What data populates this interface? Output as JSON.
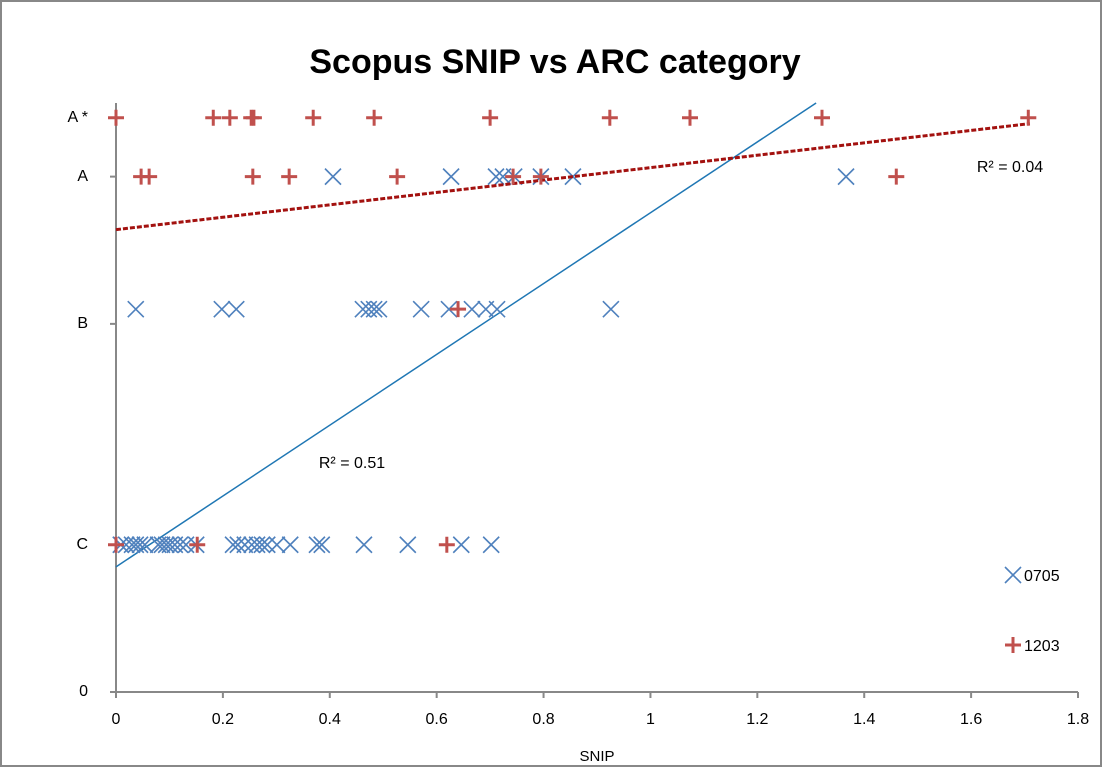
{
  "chart_data": {
    "type": "scatter",
    "title": "Scopus SNIP vs ARC category",
    "x_label": "SNIP",
    "xlim": [
      0,
      1.8
    ],
    "xticks": [
      0,
      0.2,
      0.4,
      0.6,
      0.8,
      1,
      1.2,
      1.4,
      1.6,
      1.8
    ],
    "ylim": [
      0,
      4
    ],
    "yticks": [
      0,
      {
        "value": 1,
        "label": "C"
      },
      {
        "value": 2.5,
        "label": "B"
      },
      {
        "value": 3.5,
        "label": "A"
      },
      {
        "value": 3.9,
        "label": "A *"
      }
    ],
    "grid": false,
    "legend": "right",
    "series": [
      {
        "name": "0705",
        "color": "#4f81bd",
        "marker": "x",
        "x": [
          0.406,
          0.627,
          0.711,
          0.724,
          0.745,
          0.795,
          0.855,
          1.366,
          0.037,
          0.198,
          0.225,
          0.462,
          0.473,
          0.483,
          0.492,
          0.571,
          0.623,
          0.666,
          0.692,
          0.713,
          0.926,
          0.009,
          0.019,
          0.03,
          0.037,
          0.045,
          0.054,
          0.079,
          0.086,
          0.094,
          0.101,
          0.11,
          0.12,
          0.131,
          0.15,
          0.219,
          0.228,
          0.241,
          0.254,
          0.264,
          0.273,
          0.283,
          0.301,
          0.326,
          0.376,
          0.385,
          0.464,
          0.546,
          0.646,
          0.702
        ],
        "values": [
          3.5,
          3.5,
          3.5,
          3.5,
          3.5,
          3.5,
          3.5,
          3.5,
          2.6,
          2.6,
          2.6,
          2.6,
          2.6,
          2.6,
          2.6,
          2.6,
          2.6,
          2.6,
          2.6,
          2.6,
          2.6,
          1,
          1,
          1,
          1,
          1,
          1,
          1,
          1,
          1,
          1,
          1,
          1,
          1,
          1,
          1,
          1,
          1,
          1,
          1,
          1,
          1,
          1,
          1,
          1,
          1,
          1,
          1,
          1,
          1
        ],
        "trendline": {
          "x": [
            0,
            1.31
          ],
          "y": [
            0.85,
            4.0
          ],
          "label": "R² = 0.51",
          "style": "solid"
        }
      },
      {
        "name": "1203",
        "color": "#c0504d",
        "marker": "plus",
        "x": [
          0,
          0.182,
          0.213,
          0.253,
          0.258,
          0.369,
          0.483,
          0.7,
          0.924,
          1.074,
          1.321,
          1.707,
          0.047,
          0.062,
          0.256,
          0.324,
          0.526,
          0.743,
          0.795,
          1.46,
          0.64,
          0,
          0.152,
          0.619
        ],
        "values": [
          3.9,
          3.9,
          3.9,
          3.9,
          3.9,
          3.9,
          3.9,
          3.9,
          3.9,
          3.9,
          3.9,
          3.9,
          3.5,
          3.5,
          3.5,
          3.5,
          3.5,
          3.5,
          3.5,
          3.5,
          2.6,
          1,
          1,
          1
        ],
        "trendline": {
          "x": [
            0,
            1.71
          ],
          "y": [
            3.14,
            3.86
          ],
          "label": "R² = 0.04",
          "style": "dashed"
        }
      }
    ]
  }
}
